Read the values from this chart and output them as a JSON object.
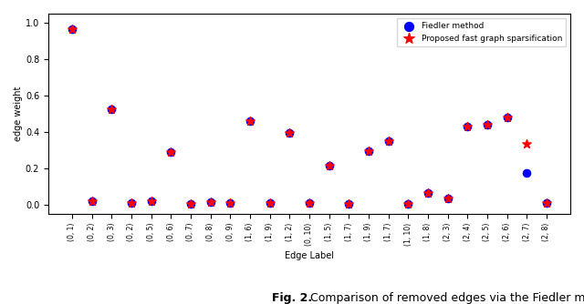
{
  "x_labels": [
    "(0, 1)",
    "(0, 2)",
    "(0, 3)",
    "(0, 2)",
    "(0, 5)",
    "(0, 6)",
    "(0, 7)",
    "(0, 8)",
    "(0, 9)",
    "(1, 6)",
    "(1, 9)",
    "(1, 2)",
    "(0, 10)",
    "(1, 5)",
    "(1, 7)",
    "(1, 9)",
    "(1, 7)",
    "(1, 10)",
    "(1, 8)",
    "(2, 3)",
    "(2, 4)",
    "(2, 5)",
    "(2, 6)",
    "(2, 7)",
    "(2, 8)"
  ],
  "fiedler_values": [
    0.963,
    0.02,
    0.525,
    0.01,
    0.02,
    0.29,
    0.005,
    0.015,
    0.01,
    0.46,
    0.01,
    0.395,
    0.01,
    0.215,
    0.003,
    0.295,
    0.35,
    0.003,
    0.065,
    0.035,
    0.43,
    0.44,
    0.48,
    0.175,
    0.01
  ],
  "proposed_values": [
    0.963,
    0.02,
    0.525,
    0.01,
    0.02,
    0.29,
    0.005,
    0.015,
    0.01,
    0.46,
    0.01,
    0.395,
    0.01,
    0.215,
    0.003,
    0.295,
    0.35,
    0.003,
    0.065,
    0.035,
    0.43,
    0.44,
    0.48,
    0.335,
    0.01
  ],
  "fiedler_color": "#0000FF",
  "proposed_color": "#FF0000",
  "ylabel": "edge weight",
  "xlabel": "Edge Label",
  "ylim": [
    -0.05,
    1.05
  ],
  "figsize": [
    6.4,
    3.34
  ],
  "dpi": 100,
  "legend_label_fiedler": "Fiedler method",
  "legend_label_proposed": "Proposed fast graph sparsification",
  "caption_bold": "Fig. 2.",
  "caption_normal": " Comparison of removed edges via the Fiedler method"
}
